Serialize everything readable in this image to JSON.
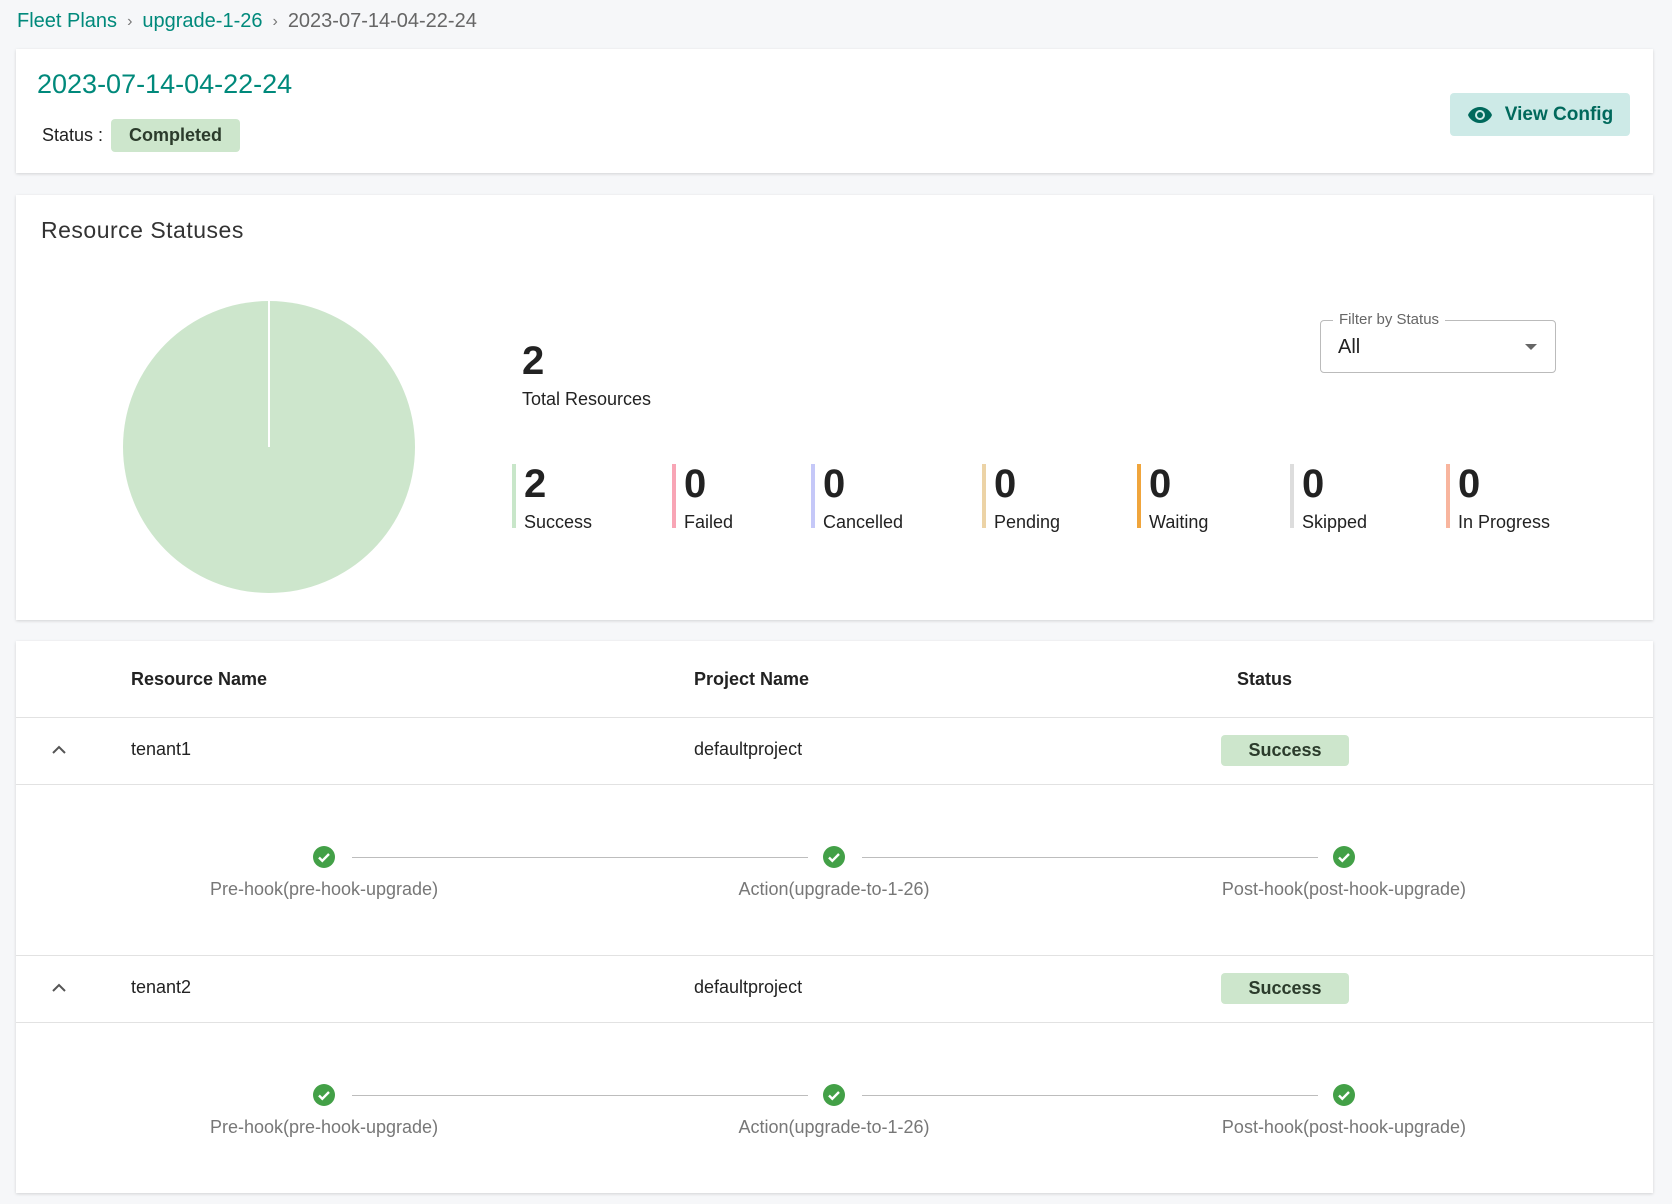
{
  "breadcrumb": [
    {
      "label": "Fleet Plans"
    },
    {
      "label": "upgrade-1-26"
    },
    {
      "label": "2023-07-14-04-22-24"
    }
  ],
  "header": {
    "title": "2023-07-14-04-22-24",
    "status_label": "Status :",
    "status": "Completed",
    "view_config": "View Config",
    "icon": "eye-icon"
  },
  "resources": {
    "title": "Resource Statuses",
    "total": "2",
    "total_label": "Total Resources",
    "filter": {
      "label": "Filter by Status",
      "value": "All"
    },
    "stats": [
      {
        "value": "2",
        "label": "Success",
        "color": "#c8e6c9"
      },
      {
        "value": "0",
        "label": "Failed",
        "color": "#f8a5b5"
      },
      {
        "value": "0",
        "label": "Cancelled",
        "color": "#c5c8f8"
      },
      {
        "value": "0",
        "label": "Pending",
        "color": "#ecd3a6"
      },
      {
        "value": "0",
        "label": "Waiting",
        "color": "#f0a53c"
      },
      {
        "value": "0",
        "label": "Skipped",
        "color": "#dddddd"
      },
      {
        "value": "0",
        "label": "In Progress",
        "color": "#f8b59e"
      }
    ]
  },
  "chart_data": {
    "type": "pie",
    "categories": [
      "Success"
    ],
    "values": [
      2
    ],
    "colors": [
      "#cde6cc"
    ]
  },
  "table": {
    "columns": [
      "Resource Name",
      "Project Name",
      "Status"
    ],
    "rows": [
      {
        "name": "tenant1",
        "project": "defaultproject",
        "status": "Success",
        "expanded": true,
        "steps": [
          "Pre-hook(pre-hook-upgrade)",
          "Action(upgrade-to-1-26)",
          "Post-hook(post-hook-upgrade)"
        ]
      },
      {
        "name": "tenant2",
        "project": "defaultproject",
        "status": "Success",
        "expanded": true,
        "steps": [
          "Pre-hook(pre-hook-upgrade)",
          "Action(upgrade-to-1-26)",
          "Post-hook(post-hook-upgrade)"
        ]
      }
    ]
  }
}
